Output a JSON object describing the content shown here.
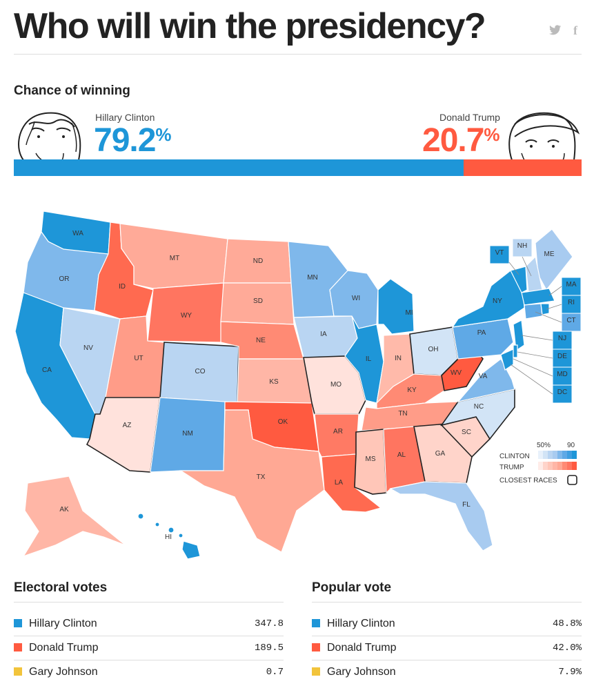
{
  "header": {
    "title": "Who will win the presidency?"
  },
  "share": {
    "twitter_glyph": "twitter-icon",
    "facebook_glyph": "f"
  },
  "chance": {
    "title": "Chance of winning",
    "clinton": {
      "name": "Hillary Clinton",
      "pct": "79.2",
      "symbol": "%",
      "color": "#1e96d8"
    },
    "trump": {
      "name": "Donald Trump",
      "pct": "20.7",
      "symbol": "%",
      "color": "#ff5a40"
    }
  },
  "map": {
    "legend": {
      "low": "50%",
      "high": "90",
      "clinton": "CLINTON",
      "trump": "TRUMP",
      "closest": "CLOSEST RACES"
    },
    "states": [
      "WA",
      "OR",
      "CA",
      "NV",
      "ID",
      "MT",
      "WY",
      "UT",
      "AZ",
      "CO",
      "NM",
      "ND",
      "SD",
      "NE",
      "KS",
      "OK",
      "TX",
      "MN",
      "IA",
      "MO",
      "AR",
      "LA",
      "WI",
      "IL",
      "MI",
      "IN",
      "OH",
      "KY",
      "TN",
      "MS",
      "AL",
      "GA",
      "FL",
      "SC",
      "NC",
      "VA",
      "WV",
      "PA",
      "NY",
      "ME",
      "VT",
      "NH",
      "MA",
      "RI",
      "CT",
      "NJ",
      "DE",
      "MD",
      "DC",
      "AK",
      "HI"
    ]
  },
  "electoral": {
    "title": "Electoral votes",
    "rows": [
      {
        "name": "Hillary Clinton",
        "value": "347.8",
        "color": "#1e96d8"
      },
      {
        "name": "Donald Trump",
        "value": "189.5",
        "color": "#ff5a40"
      },
      {
        "name": "Gary Johnson",
        "value": "0.7",
        "color": "#f2c43b"
      }
    ]
  },
  "popular": {
    "title": "Popular vote",
    "rows": [
      {
        "name": "Hillary Clinton",
        "value": "48.8%",
        "color": "#1e96d8"
      },
      {
        "name": "Donald Trump",
        "value": "42.0%",
        "color": "#ff5a40"
      },
      {
        "name": "Gary Johnson",
        "value": "7.9%",
        "color": "#f2c43b"
      }
    ]
  }
}
